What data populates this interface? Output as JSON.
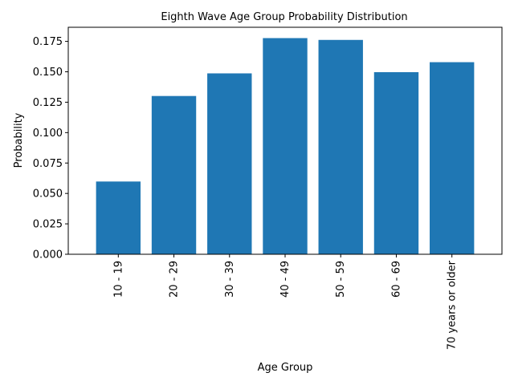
{
  "chart_data": {
    "type": "bar",
    "title": "Eighth Wave Age Group Probability Distribution",
    "xlabel": "Age Group",
    "ylabel": "Probability",
    "categories": [
      "10 - 19",
      "20 - 29",
      "30 - 39",
      "40 - 49",
      "50 - 59",
      "60 - 69",
      "70 years or older"
    ],
    "values": [
      0.0598,
      0.1301,
      0.1487,
      0.1777,
      0.1762,
      0.1497,
      0.1579
    ],
    "ylim": [
      0,
      0.1866
    ],
    "yticks": [
      "0.000",
      "0.025",
      "0.050",
      "0.075",
      "0.100",
      "0.125",
      "0.150",
      "0.175"
    ],
    "bar_color": "#1f77b4",
    "grid": false
  }
}
